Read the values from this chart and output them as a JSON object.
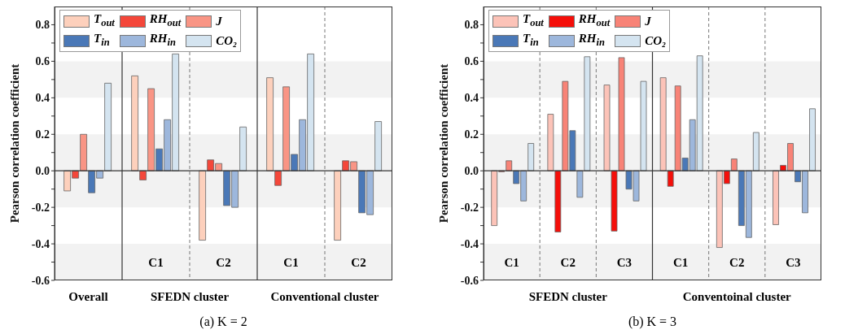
{
  "chart_data": [
    {
      "type": "bar",
      "title": "(a) K = 2",
      "ylabel": "Pearson correlation coefficient",
      "categories": [
        null,
        "C1",
        "C2",
        "C1",
        "C2"
      ],
      "series": [
        {
          "name": "T$_{out}$",
          "color": "#fdd0bc",
          "values": [
            -0.11,
            0.52,
            -0.38,
            0.51,
            -0.38
          ]
        },
        {
          "name": "RH$_{out}$",
          "color": "#f4473a",
          "values": [
            -0.04,
            -0.05,
            0.06,
            -0.08,
            0.055
          ]
        },
        {
          "name": "J",
          "color": "#f99585",
          "values": [
            0.2,
            0.45,
            0.04,
            0.46,
            0.05
          ]
        },
        {
          "name": "T$_{in}$",
          "color": "#4a78b7",
          "values": [
            -0.12,
            0.12,
            -0.19,
            0.09,
            -0.23
          ]
        },
        {
          "name": "RH$_{in}$",
          "color": "#9db7dc",
          "values": [
            -0.04,
            0.28,
            -0.2,
            0.28,
            -0.24
          ]
        },
        {
          "name": "CO₂",
          "color": "#d4e4f0",
          "values": [
            0.48,
            0.64,
            0.24,
            0.64,
            0.27
          ]
        }
      ],
      "ylim": [
        -0.6,
        0.9
      ],
      "yticks": [
        -0.6,
        {
          "value": -0.5,
          "label": null
        },
        -0.4,
        {
          "value": -0.3,
          "label": null
        },
        -0.2,
        {
          "value": -0.1,
          "label": null
        },
        {
          "value": 0,
          "label": "0.0"
        },
        {
          "value": 0.1,
          "label": null
        },
        0.2,
        {
          "value": 0.3,
          "label": null
        },
        0.4,
        {
          "value": 0.5,
          "label": null
        },
        0.6,
        {
          "value": 0.7,
          "label": null
        },
        0.8
      ],
      "bands": [
        {
          "axis": "y",
          "from": 0.4,
          "to": 0.6,
          "color": "#f2f2f2"
        },
        {
          "axis": "y",
          "from": -0.2,
          "to": 0.2,
          "color": "#f2f2f2"
        },
        {
          "axis": "y",
          "from": -0.6,
          "to": -0.4,
          "color": "#f2f2f2"
        }
      ],
      "ref_lines": [
        {
          "axis": "y",
          "value": 0,
          "color": "#333333"
        }
      ],
      "legend": "top left",
      "annotations": [
        "Overall",
        "SFEDN cluster",
        "Conventional cluster"
      ]
    },
    {
      "type": "bar",
      "title": "(b) K = 3",
      "ylabel": "Pearson correlation coefficient",
      "categories": [
        "C1",
        "C2",
        "C3",
        "C1",
        "C2",
        "C3"
      ],
      "series": [
        {
          "name": "T$_{out}$",
          "color": "#fcc3b8",
          "values": [
            -0.3,
            0.31,
            0.47,
            0.51,
            -0.42,
            -0.295
          ]
        },
        {
          "name": "RH$_{out}$",
          "color": "#f50f0a",
          "values": [
            -0.005,
            -0.335,
            -0.33,
            -0.085,
            -0.07,
            0.03
          ]
        },
        {
          "name": "J",
          "color": "#f88377",
          "values": [
            0.055,
            0.49,
            0.62,
            0.465,
            0.065,
            0.15
          ]
        },
        {
          "name": "T$_{in}$",
          "color": "#4a78b7",
          "values": [
            -0.07,
            0.22,
            -0.1,
            0.07,
            -0.3,
            -0.06
          ]
        },
        {
          "name": "RH$_{in}$",
          "color": "#9db7dc",
          "values": [
            -0.165,
            -0.145,
            -0.165,
            0.28,
            -0.365,
            -0.23
          ]
        },
        {
          "name": "CO₂",
          "color": "#d4e4f0",
          "values": [
            0.15,
            0.625,
            0.49,
            0.63,
            0.21,
            0.34
          ]
        }
      ],
      "ylim": [
        -0.6,
        0.9
      ],
      "yticks": [
        -0.6,
        {
          "value": -0.5,
          "label": null
        },
        -0.4,
        {
          "value": -0.3,
          "label": null
        },
        -0.2,
        {
          "value": -0.1,
          "label": null
        },
        {
          "value": 0,
          "label": "0.0"
        },
        {
          "value": 0.1,
          "label": null
        },
        0.2,
        {
          "value": 0.3,
          "label": null
        },
        0.4,
        {
          "value": 0.5,
          "label": null
        },
        0.6,
        {
          "value": 0.7,
          "label": null
        },
        0.8
      ],
      "bands": [
        {
          "axis": "y",
          "from": 0.4,
          "to": 0.6,
          "color": "#f2f2f2"
        },
        {
          "axis": "y",
          "from": -0.2,
          "to": 0.2,
          "color": "#f2f2f2"
        },
        {
          "axis": "y",
          "from": -0.6,
          "to": -0.4,
          "color": "#f2f2f2"
        }
      ],
      "ref_lines": [
        {
          "axis": "y",
          "value": 0,
          "color": "#333333"
        }
      ],
      "legend": "top left",
      "annotations": [
        "SFEDN cluster",
        "Conventoinal cluster"
      ]
    }
  ]
}
